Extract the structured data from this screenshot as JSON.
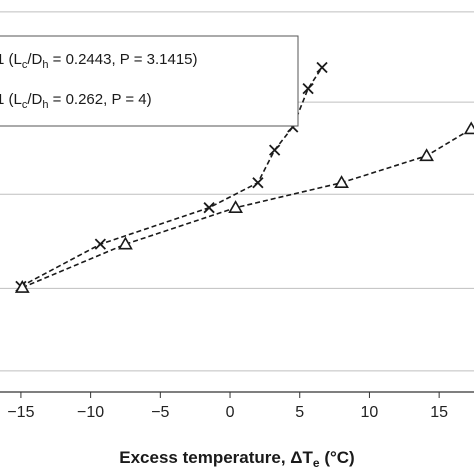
{
  "chart_data": {
    "type": "scatter",
    "xlabel": "Excess temperature, ΔT",
    "xlabel_sub": "e",
    "xlabel_unit": " (°C)",
    "xlim": [
      -16.5,
      17.5
    ],
    "ylim": [
      0,
      10
    ],
    "x_ticks": [
      -15,
      -10,
      -5,
      0,
      5,
      10,
      15
    ],
    "x_tick_labels": [
      "−15",
      "−10",
      "−5",
      "0",
      "5",
      "10",
      "15"
    ],
    "y_gridlines": [
      0.55,
      2.7,
      5.15,
      7.55,
      9.9
    ],
    "grid": true,
    "legend": "top-left",
    "series": [
      {
        "name": "1 (Lc/Dh = 0.2443, P = 3.1415)",
        "marker": "x",
        "line": "dashed",
        "points": [
          {
            "x": -15.0,
            "y": 2.75
          },
          {
            "x": -9.3,
            "y": 3.85
          },
          {
            "x": -1.5,
            "y": 4.8
          },
          {
            "x": 2.0,
            "y": 5.45
          },
          {
            "x": 3.2,
            "y": 6.3
          },
          {
            "x": 4.5,
            "y": 6.9
          },
          {
            "x": 5.6,
            "y": 7.9
          },
          {
            "x": 6.6,
            "y": 8.45
          }
        ]
      },
      {
        "name": "1 (Lc/Dh = 0.262, P = 4)",
        "marker": "triangle",
        "line": "dashed",
        "points": [
          {
            "x": -14.9,
            "y": 2.72
          },
          {
            "x": -7.5,
            "y": 3.85
          },
          {
            "x": 0.4,
            "y": 4.8
          },
          {
            "x": 8.0,
            "y": 5.45
          },
          {
            "x": 14.1,
            "y": 6.15
          },
          {
            "x": 17.3,
            "y": 6.85
          }
        ]
      }
    ]
  },
  "legend_entries": [
    {
      "lead": "1 (L",
      "sub1": "c",
      "mid": "/D",
      "sub2": "h",
      "tail": " = 0.2443, P = 3.1415)"
    },
    {
      "lead": "1 (L",
      "sub1": "c",
      "mid": "/D",
      "sub2": "h",
      "tail": " = 0.262, P = 4)"
    }
  ],
  "colors": {
    "series": "#1a1a1a",
    "grid": "#bfbfbf",
    "axis": "#333333",
    "background": "#ffffff"
  }
}
